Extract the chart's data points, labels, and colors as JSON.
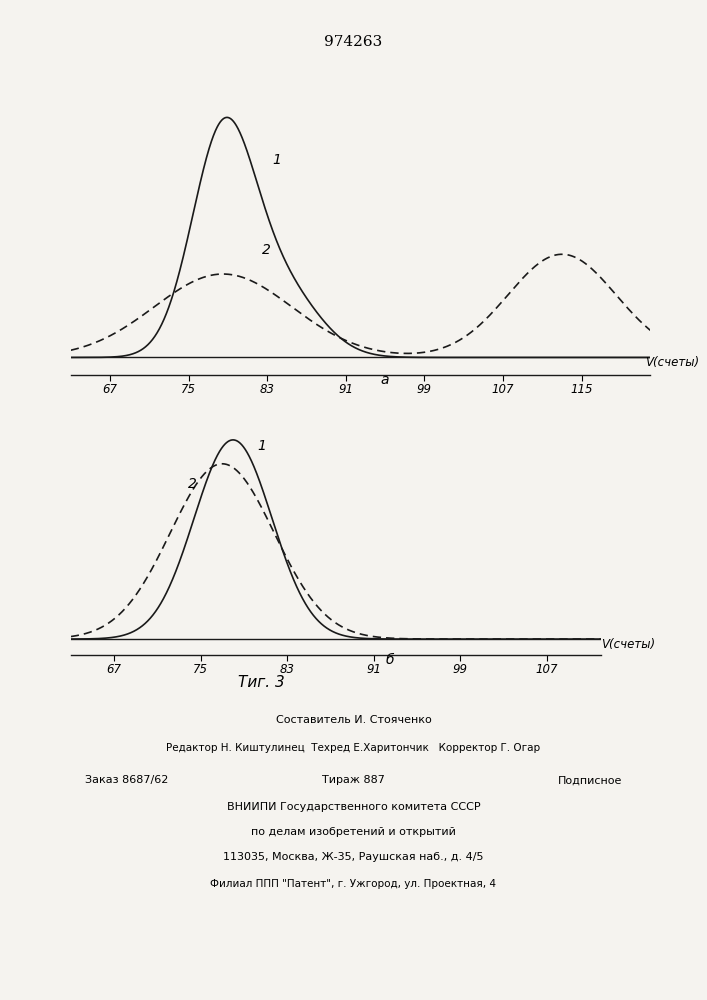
{
  "patent_number": "974263",
  "fig_caption": "Τиг. 3",
  "plot_a": {
    "xlabel": "V(счеты)",
    "sublabel": "a",
    "x_ticks": [
      67,
      75,
      83,
      91,
      99,
      107,
      115
    ],
    "xlim": [
      63,
      122
    ],
    "ylim": [
      -0.08,
      1.15
    ],
    "curve1_label": "1",
    "curve2_label": "2"
  },
  "plot_b": {
    "xlabel": "V(счеты)",
    "sublabel": "б",
    "x_ticks": [
      67,
      75,
      83,
      91,
      99,
      107
    ],
    "xlim": [
      63,
      112
    ],
    "ylim": [
      -0.08,
      1.15
    ],
    "curve1_label": "1",
    "curve2_label": "2"
  },
  "footer": {
    "line1": "Составитель И. Стояченко",
    "line2": "Редактор Н. Киштулинец  Техред Е.Харитончик   Корректор Г. Огар",
    "line3_left": "Заказ 8687/62",
    "line3_mid": "Тираж 887",
    "line3_right": "Подписное",
    "line4": "ВНИИПИ Государственного комитета СССР",
    "line5": "по делам изобретений и открытий",
    "line6": "113035, Москва, Ж-35, Раушская наб., д. 4/5",
    "line7": "Филиал ППП \"Патент\", г. Ужгород, ул. Проектная, 4"
  },
  "bg_color": "#f5f3ef",
  "line_color": "#1a1a1a"
}
